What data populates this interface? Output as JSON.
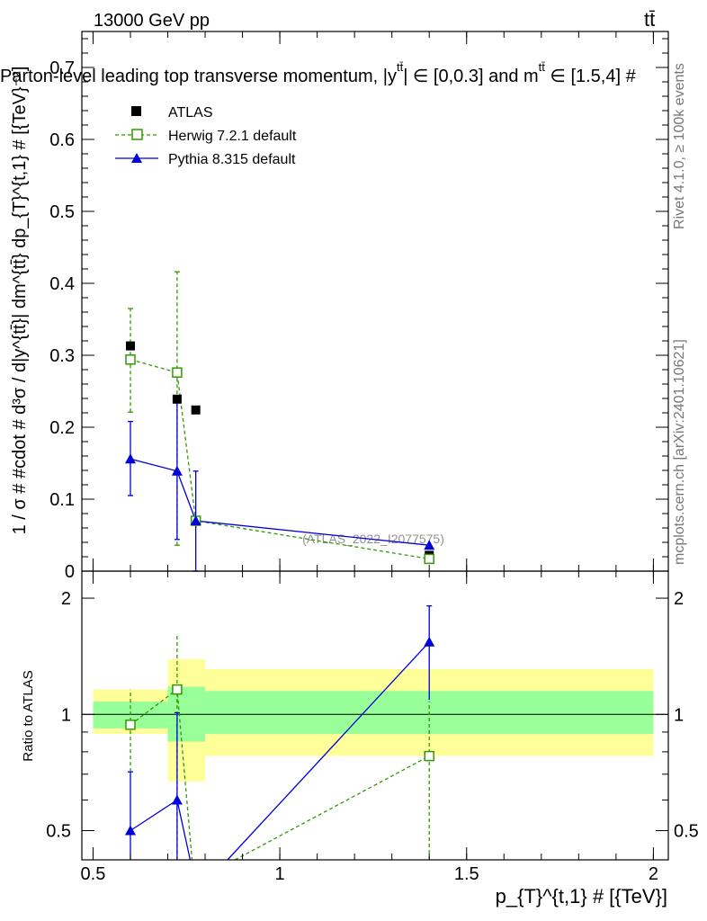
{
  "header": {
    "energy": "13000 GeV pp",
    "process": "tt̄",
    "title": "Parton-level leading top transverse momentum, |y",
    "title_sup": "tt̄",
    "title_mid": "| ∈ [0,0.3] and m",
    "title_sup2": "tt̄",
    "title_end": " ∈ [1.5,4] #"
  },
  "side_text": {
    "rivet": "Rivet 4.1.0, ≥ 100k events",
    "mcplots": "mcplots.cern.ch [arXiv:2401.10621]"
  },
  "watermark": "(ATLAS_2022_I2077575)",
  "legend": {
    "atlas": "ATLAS",
    "herwig": "Herwig 7.2.1 default",
    "pythia": "Pythia 8.315 default"
  },
  "colors": {
    "atlas": "#000000",
    "herwig": "#339900",
    "pythia": "#0000dd",
    "band_inner": "#99ff99",
    "band_outer": "#ffff99"
  },
  "axes": {
    "y_main_label": "1 / σ # #cdot # d³σ / d|y^{tt̄}| dm^{tt̄} dp_{T}^{t,1} # [{TeV}⁻²]",
    "y_ratio_label": "Ratio to ATLAS",
    "x_label": "p_{T}^{t,1} # [{TeV}]",
    "x_ticks": [
      "0.5",
      "1",
      "1.5",
      "2"
    ],
    "y_main_ticks": [
      "0",
      "0.1",
      "0.2",
      "0.3",
      "0.4",
      "0.5",
      "0.6",
      "0.7"
    ],
    "y_ratio_ticks": [
      "0.5",
      "1",
      "2"
    ]
  },
  "chart_data": {
    "type": "scatter",
    "xlim": [
      0.47,
      2.04
    ],
    "ylim_main": [
      0,
      0.75
    ],
    "ylim_ratio": [
      0.42,
      2.35
    ],
    "bins": [
      [
        0.5,
        0.7
      ],
      [
        0.7,
        0.8
      ],
      [
        0.8,
        2.0
      ]
    ],
    "atlas": {
      "x": [
        0.6,
        0.725,
        0.775,
        1.4
      ],
      "y": [
        0.313,
        0.239,
        0.224,
        0.022
      ]
    },
    "herwig": {
      "x": [
        0.6,
        0.725,
        0.775,
        1.4
      ],
      "y": [
        0.294,
        0.276,
        0.07,
        0.017
      ],
      "err_lo": [
        0.073,
        0.24,
        0.0,
        0.0
      ],
      "err_hi": [
        0.071,
        0.14,
        0.0,
        0.0
      ]
    },
    "pythia": {
      "x": [
        0.6,
        0.725,
        0.775,
        1.4
      ],
      "y": [
        0.156,
        0.139,
        0.07,
        0.036
      ],
      "err_lo": [
        0.051,
        0.095,
        0.07,
        0.0
      ],
      "err_hi": [
        0.052,
        0.1,
        0.069,
        0.0
      ]
    },
    "ratio": {
      "herwig": {
        "x": [
          0.6,
          0.725,
          1.4
        ],
        "y": [
          0.94,
          1.16,
          0.78
        ],
        "err_lo": [
          0.23,
          0.85,
          0.37
        ],
        "err_hi": [
          0.22,
          0.46,
          0.3
        ]
      },
      "herwig_line_end": [
        0.88,
        0.2
      ],
      "pythia": {
        "x": [
          0.6,
          0.725,
          1.4
        ],
        "y": [
          0.5,
          0.6,
          1.54
        ],
        "err_lo": [
          0.2,
          0.5,
          0.45
        ],
        "err_hi": [
          0.21,
          0.41,
          0.37
        ]
      },
      "pythia_line_mid": [
        0.77,
        0.2
      ],
      "pythia_line_from": [
        0.86,
        0.2
      ],
      "band_inner": [
        [
          0.92,
          1.08
        ],
        [
          0.85,
          1.18
        ],
        [
          0.89,
          1.15
        ]
      ],
      "band_outer": [
        [
          0.89,
          1.16
        ],
        [
          0.67,
          1.39
        ],
        [
          0.78,
          1.31
        ]
      ]
    }
  }
}
